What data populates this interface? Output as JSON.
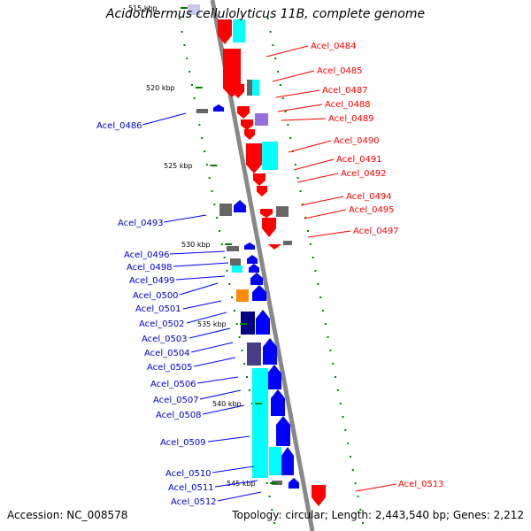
{
  "title": "Acidothermus cellulolyticus 11B, complete genome",
  "footer": {
    "accession": "Accession: NC_008578",
    "summary": "Topology: circular; Length: 2,443,540 bp; Genes: 2,212"
  },
  "colors": {
    "forward": "#ff0000",
    "reverse": "#0000ff",
    "backbone": "#888888",
    "tick": "#008000",
    "cyan": "#00ffff",
    "gray": "#666666",
    "orange": "#ff8c00",
    "navy": "#000080",
    "slate": "#483d8b",
    "lavender": "#9370db"
  },
  "kbp_ticks": [
    "515 kbp",
    "520 kbp",
    "525 kbp",
    "530 kbp",
    "535 kbp",
    "540 kbp",
    "545 kbp"
  ],
  "right_labels": [
    "Acel_0484",
    "Acel_0485",
    "Acel_0487",
    "Acel_0488",
    "Acel_0489",
    "Acel_0490",
    "Acel_0491",
    "Acel_0492",
    "Acel_0494",
    "Acel_0495",
    "Acel_0497",
    "Acel_0513"
  ],
  "left_labels": [
    "Acel_0486",
    "Acel_0493",
    "Acel_0496",
    "Acel_0498",
    "Acel_0499",
    "Acel_0500",
    "Acel_0501",
    "Acel_0502",
    "Acel_0503",
    "Acel_0504",
    "Acel_0505",
    "Acel_0506",
    "Acel_0507",
    "Acel_0508",
    "Acel_0509",
    "Acel_0510",
    "Acel_0511",
    "Acel_0512"
  ]
}
